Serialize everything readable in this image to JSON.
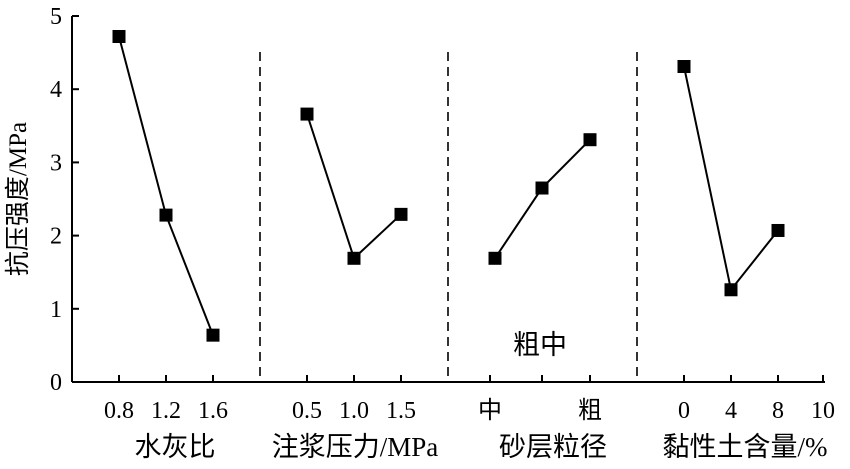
{
  "chart_data": {
    "type": "line",
    "title": "",
    "ylabel": "抗压强度/MPa",
    "ylim": [
      0,
      5
    ],
    "yticks": [
      0,
      1,
      2,
      3,
      4,
      5
    ],
    "grid": false,
    "legend": "none",
    "annotation": "粗中",
    "groups": [
      {
        "xlabel": "水灰比",
        "x": [
          0.8,
          1.2,
          1.6
        ],
        "tick_labels": [
          "0.8",
          "1.2",
          "1.6"
        ],
        "values": [
          4.72,
          2.28,
          0.64
        ]
      },
      {
        "xlabel": "注浆压力/MPa",
        "x": [
          0.5,
          1.0,
          1.5
        ],
        "tick_labels": [
          "0.5",
          "1.0",
          "1.5"
        ],
        "values": [
          3.66,
          1.69,
          2.29
        ]
      },
      {
        "xlabel": "砂层粒径",
        "x": [
          "中",
          "粗中",
          "粗"
        ],
        "tick_labels": [
          "中",
          "",
          "粗"
        ],
        "values": [
          1.69,
          2.65,
          3.31
        ]
      },
      {
        "xlabel": "黏性土含量/%",
        "x": [
          0,
          4,
          8
        ],
        "tick_labels": [
          "0",
          "4",
          "8",
          "10"
        ],
        "values": [
          4.31,
          1.26,
          2.07
        ]
      }
    ]
  }
}
